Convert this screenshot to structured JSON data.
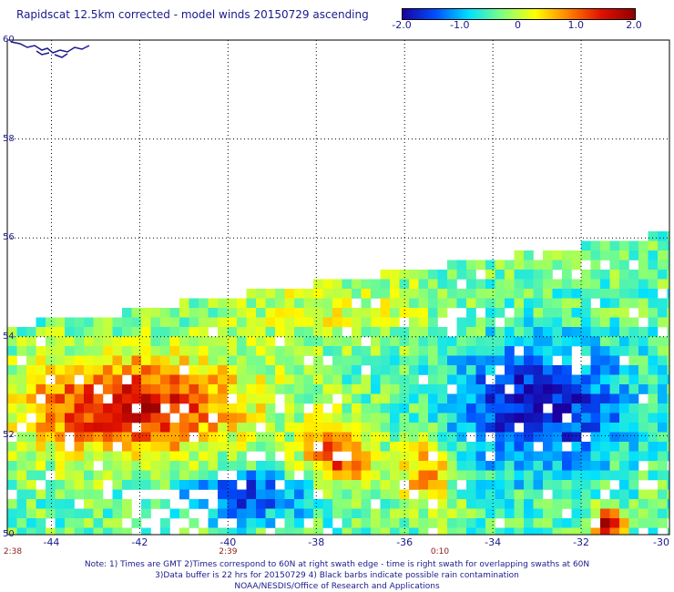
{
  "title": "Rapidscat 12.5km corrected - model winds 20150729 ascending",
  "colorbar": {
    "range": [
      -2.0,
      2.0
    ],
    "ticks": [
      {
        "label": "-2.0",
        "value": -2.0
      },
      {
        "label": "-1.0",
        "value": -1.0
      },
      {
        "label": "0",
        "value": 0
      },
      {
        "label": "1.0",
        "value": 1.0
      },
      {
        "label": "2.0",
        "value": 2.0
      }
    ],
    "colors": [
      "#1a00a0",
      "#0050ff",
      "#00e0ff",
      "#80ff80",
      "#ffff00",
      "#ff8000",
      "#e01000",
      "#900000"
    ]
  },
  "map": {
    "lat_range": [
      50,
      60
    ],
    "lon_range": [
      -45,
      -30
    ],
    "lat_ticks": [
      {
        "label": "60",
        "value": 60
      },
      {
        "label": "58",
        "value": 58
      },
      {
        "label": "56",
        "value": 56
      },
      {
        "label": "54",
        "value": 54
      },
      {
        "label": "52",
        "value": 52
      },
      {
        "label": "50",
        "value": 50
      }
    ],
    "lon_ticks": [
      {
        "label": "-44",
        "value": -44
      },
      {
        "label": "-42",
        "value": -42
      },
      {
        "label": "-40",
        "value": -40
      },
      {
        "label": "-38",
        "value": -38
      },
      {
        "label": "-36",
        "value": -36
      },
      {
        "label": "-34",
        "value": -34
      },
      {
        "label": "-32",
        "value": -32
      },
      {
        "label": "-30",
        "value": -30
      }
    ],
    "time_labels": [
      {
        "label": "2:38",
        "lon": -45.2
      },
      {
        "label": "2:39",
        "lon": -40.0
      },
      {
        "label": "0:10",
        "lon": -35.2
      }
    ],
    "coast_color": "#1a1a8c"
  },
  "notes": [
    "Note: 1) Times are GMT 2)Times correspond to 60N at right swath edge - time is right swath for overlapping swaths at 60N",
    "3)Data buffer is 22 hrs for 20150729 4) Black barbs indicate possible rain contamination",
    "NOAA/NESDIS/Office of Research and Applications"
  ]
}
